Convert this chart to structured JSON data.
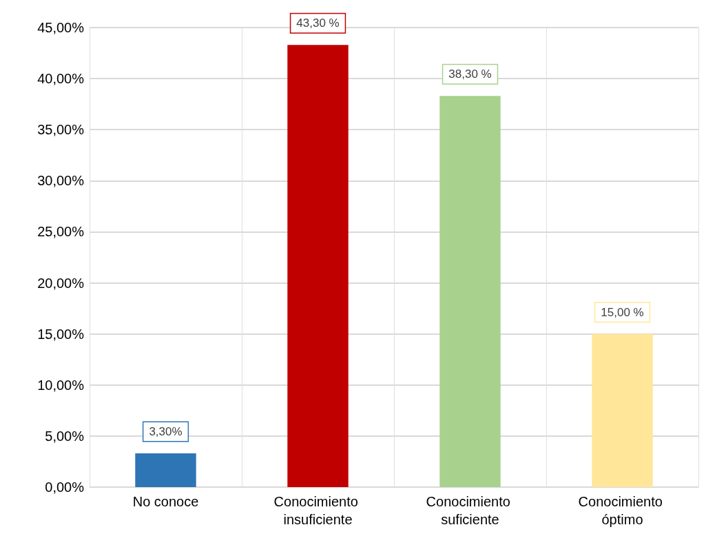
{
  "chart_data": {
    "type": "bar",
    "categories": [
      "No conoce",
      "Conocimiento insuficiente",
      "Conocimiento suficiente",
      "Conocimiento óptimo"
    ],
    "values": [
      3.3,
      43.3,
      38.3,
      15.0
    ],
    "colors": [
      "#2e75b6",
      "#c00000",
      "#a9d18e",
      "#ffe699"
    ],
    "value_labels": [
      "3,30%",
      "43,30 %",
      "38,30 %",
      "15,00 %"
    ],
    "ylim": [
      0,
      45
    ],
    "yticks": [
      {
        "value": 0,
        "label": "0,00%"
      },
      {
        "value": 5,
        "label": "5,00%"
      },
      {
        "value": 10,
        "label": "10,00%"
      },
      {
        "value": 15,
        "label": "15,00%"
      },
      {
        "value": 20,
        "label": "20,00%"
      },
      {
        "value": 25,
        "label": "25,00%"
      },
      {
        "value": 30,
        "label": "30,00%"
      },
      {
        "value": 35,
        "label": "35,00%"
      },
      {
        "value": 40,
        "label": "40,00%"
      },
      {
        "value": 45,
        "label": "45,00%"
      }
    ],
    "grid": true
  }
}
